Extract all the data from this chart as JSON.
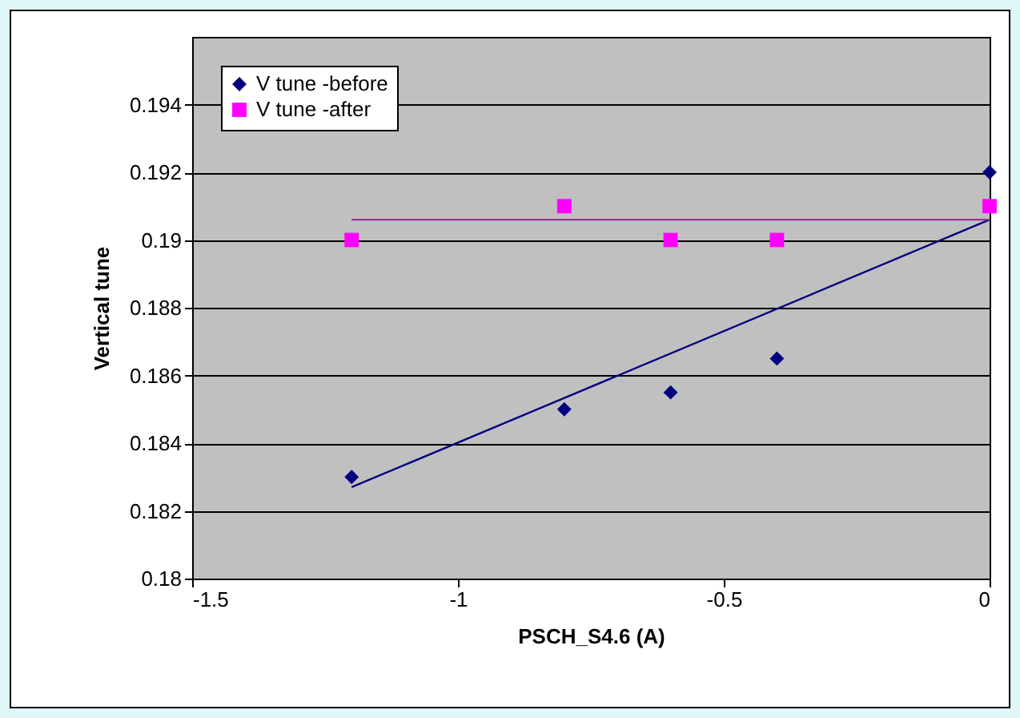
{
  "chart_data": {
    "type": "scatter",
    "xlabel": "PSCH_S4.6 (A)",
    "ylabel": "Vertical tune",
    "xlim": [
      -1.5,
      0
    ],
    "xticks": [
      -1.5,
      -1,
      -0.5,
      0
    ],
    "ylim": [
      0.18,
      0.196
    ],
    "yticks": [
      {
        "value": 0.18,
        "label": "0.18"
      },
      0.182,
      0.184,
      0.186,
      0.188,
      {
        "value": 0.19,
        "label": "0.19"
      },
      0.192,
      0.194
    ],
    "grid": "y",
    "legend": "top left",
    "series": [
      {
        "name": "V tune -before",
        "marker": "diamond",
        "color": "#000080",
        "x": [
          -1.2,
          -0.8,
          -0.6,
          -0.4,
          0
        ],
        "values": [
          0.183,
          0.185,
          0.1855,
          0.1865,
          0.192
        ]
      },
      {
        "name": "V tune -after",
        "marker": "square",
        "color": "#ff00ff",
        "x": [
          -1.2,
          -0.8,
          -0.6,
          -0.4,
          0
        ],
        "values": [
          0.19,
          0.191,
          0.19,
          0.19,
          0.191
        ]
      },
      {
        "type": "line",
        "color": "#000080",
        "x": [
          -1.2,
          0
        ],
        "values": [
          0.1827,
          0.1906
        ]
      },
      {
        "type": "line",
        "color": "#993399",
        "x": [
          -1.2,
          0
        ],
        "values": [
          0.1906,
          0.1906
        ]
      }
    ]
  }
}
